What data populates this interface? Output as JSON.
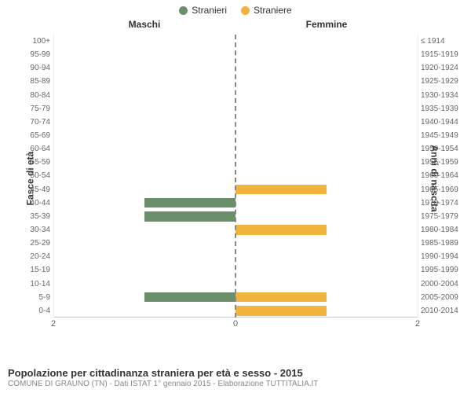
{
  "legend": {
    "male": {
      "label": "Stranieri",
      "color": "#6b8f6b"
    },
    "female": {
      "label": "Straniere",
      "color": "#f2b33d"
    }
  },
  "columns": {
    "left": "Maschi",
    "right": "Femmine"
  },
  "axes": {
    "left_title": "Fasce di età",
    "right_title": "Anni di nascita",
    "x_max": 2,
    "x_ticks": [
      2,
      0,
      2
    ],
    "grid_color": "#eeeeee",
    "axis_color": "#cccccc",
    "centerline_color": "#888888"
  },
  "footer": {
    "title": "Popolazione per cittadinanza straniera per età e sesso - 2015",
    "subtitle": "COMUNE DI GRAUNO (TN) - Dati ISTAT 1° gennaio 2015 - Elaborazione TUTTITALIA.IT"
  },
  "rows": [
    {
      "age": "100+",
      "birth": "≤ 1914",
      "m": 0,
      "f": 0
    },
    {
      "age": "95-99",
      "birth": "1915-1919",
      "m": 0,
      "f": 0
    },
    {
      "age": "90-94",
      "birth": "1920-1924",
      "m": 0,
      "f": 0
    },
    {
      "age": "85-89",
      "birth": "1925-1929",
      "m": 0,
      "f": 0
    },
    {
      "age": "80-84",
      "birth": "1930-1934",
      "m": 0,
      "f": 0
    },
    {
      "age": "75-79",
      "birth": "1935-1939",
      "m": 0,
      "f": 0
    },
    {
      "age": "70-74",
      "birth": "1940-1944",
      "m": 0,
      "f": 0
    },
    {
      "age": "65-69",
      "birth": "1945-1949",
      "m": 0,
      "f": 0
    },
    {
      "age": "60-64",
      "birth": "1950-1954",
      "m": 0,
      "f": 0
    },
    {
      "age": "55-59",
      "birth": "1955-1959",
      "m": 0,
      "f": 0
    },
    {
      "age": "50-54",
      "birth": "1960-1964",
      "m": 0,
      "f": 0
    },
    {
      "age": "45-49",
      "birth": "1965-1969",
      "m": 0,
      "f": 1
    },
    {
      "age": "40-44",
      "birth": "1970-1974",
      "m": 1,
      "f": 0
    },
    {
      "age": "35-39",
      "birth": "1975-1979",
      "m": 1,
      "f": 0
    },
    {
      "age": "30-34",
      "birth": "1980-1984",
      "m": 0,
      "f": 1
    },
    {
      "age": "25-29",
      "birth": "1985-1989",
      "m": 0,
      "f": 0
    },
    {
      "age": "20-24",
      "birth": "1990-1994",
      "m": 0,
      "f": 0
    },
    {
      "age": "15-19",
      "birth": "1995-1999",
      "m": 0,
      "f": 0
    },
    {
      "age": "10-14",
      "birth": "2000-2004",
      "m": 0,
      "f": 0
    },
    {
      "age": "5-9",
      "birth": "2005-2009",
      "m": 1,
      "f": 1
    },
    {
      "age": "0-4",
      "birth": "2010-2014",
      "m": 0,
      "f": 1
    }
  ]
}
